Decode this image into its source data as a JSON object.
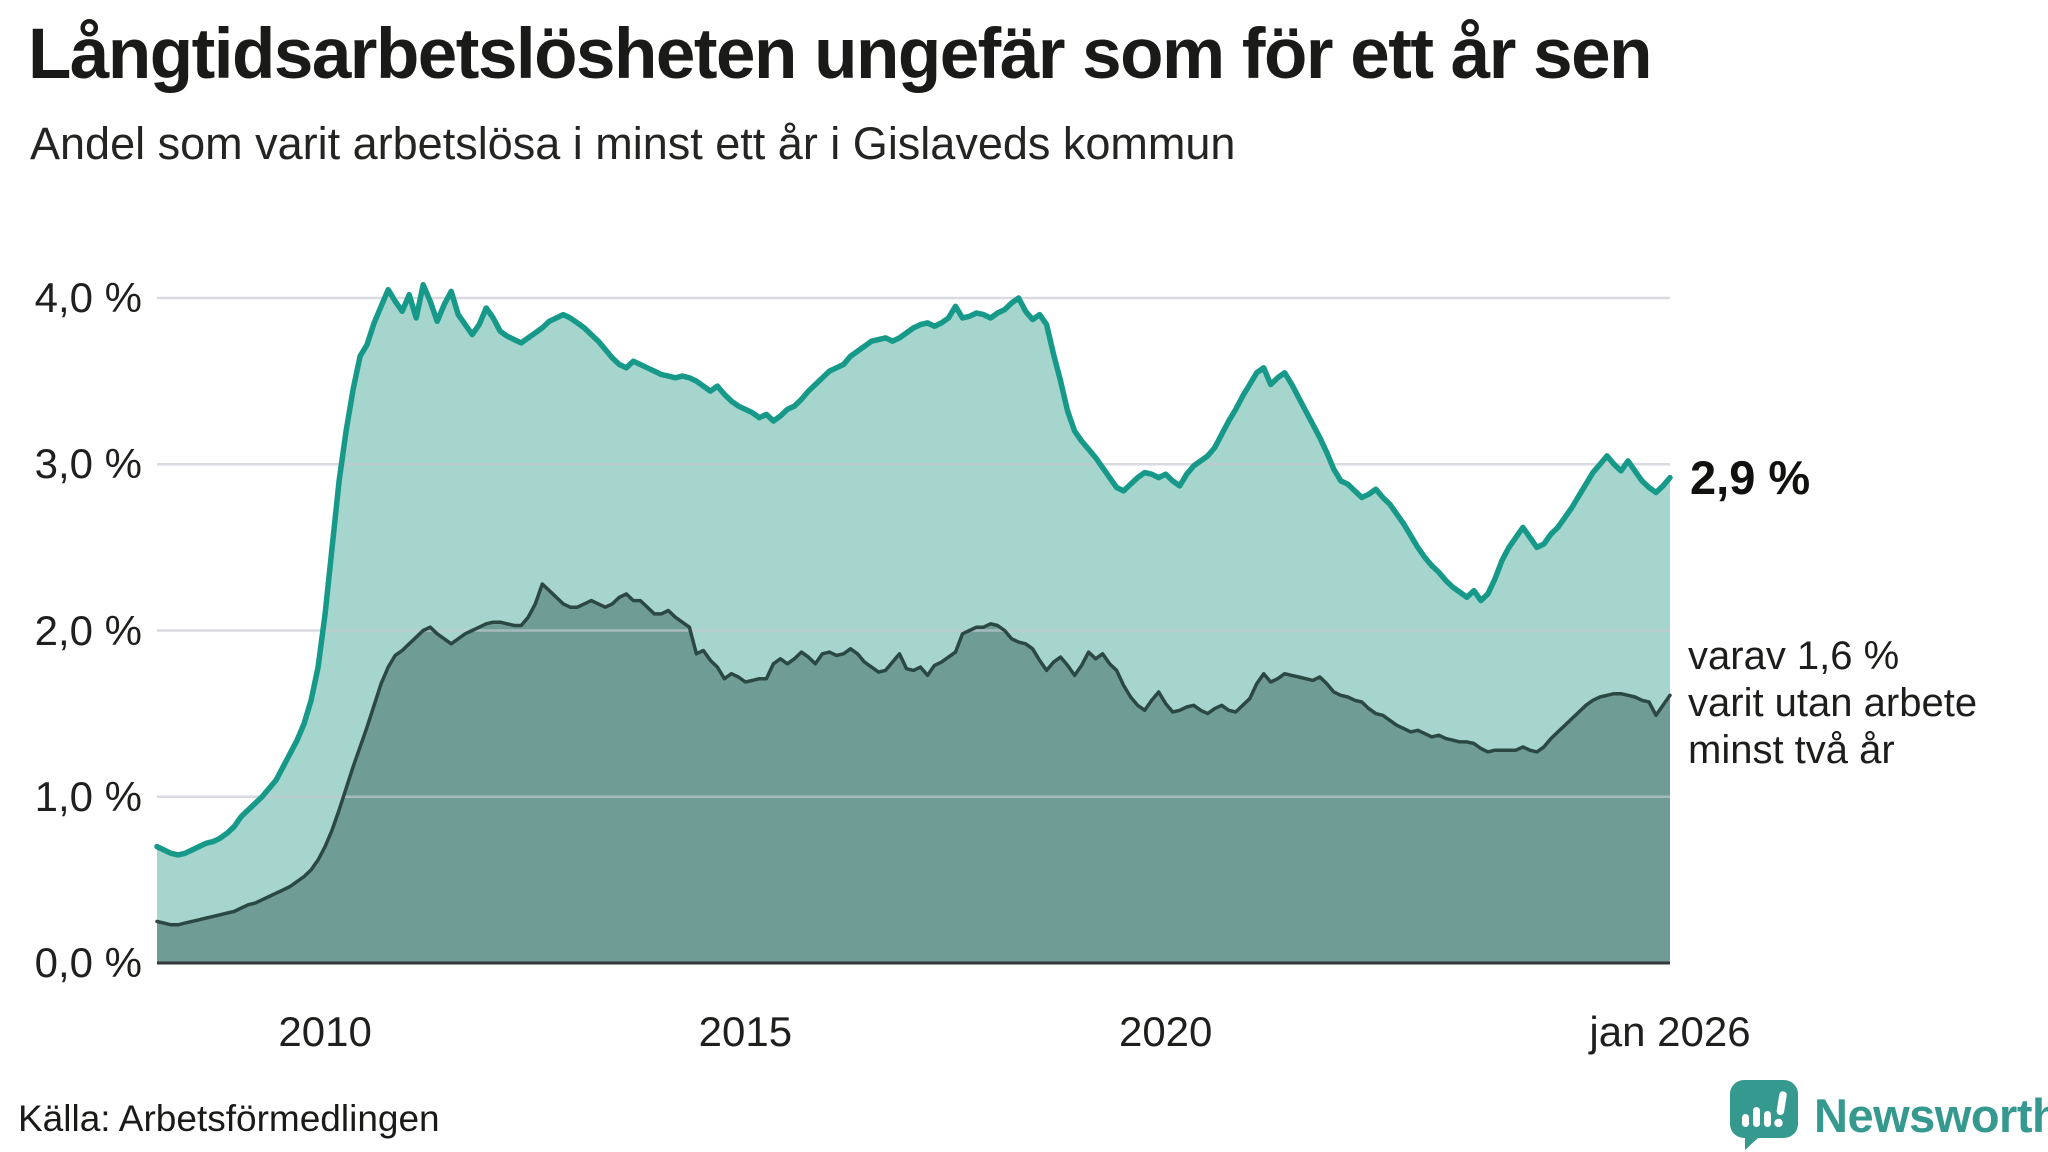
{
  "header": {
    "title": "Långtidsarbetslösheten ungefär som för ett år sen",
    "subtitle": "Andel som varit arbetslösa i minst ett år i Gislaveds kommun"
  },
  "chart_data": {
    "type": "area",
    "title": "Långtidsarbetslösheten ungefär som för ett år sen",
    "subtitle": "Andel som varit arbetslösa i minst ett år i Gislaveds kommun",
    "x_unit": "month",
    "x_start": "2008-01",
    "x_end": "2026-01",
    "grid": "horizontal",
    "legend_position": "right-edge-annotations",
    "ylim": [
      0,
      4.15
    ],
    "y_ticks": [
      {
        "label": "0,0 %",
        "value": 0
      },
      {
        "label": "1,0 %",
        "value": 1
      },
      {
        "label": "2,0 %",
        "value": 2
      },
      {
        "label": "3,0 %",
        "value": 3
      },
      {
        "label": "4,0 %",
        "value": 4
      }
    ],
    "x_ticks": [
      {
        "label": "2010",
        "month_index": 24
      },
      {
        "label": "2015",
        "month_index": 84
      },
      {
        "label": "2020",
        "month_index": 144
      },
      {
        "label": "jan 2026",
        "month_index": 216
      }
    ],
    "end_labels": {
      "primary": "2,9 %",
      "secondary_lines": [
        "varav 1,6 %",
        "varit utan arbete",
        "minst två år"
      ]
    },
    "colors": {
      "line_1yr": "#17998a",
      "fill_1yr": "#a6d5cd",
      "line_2yr": "#2c4843",
      "fill_2yr": "#6f9d96",
      "gridline": "rgba(197,200,207,0.65)",
      "axis": "#32383b"
    },
    "series": [
      {
        "name": "Andel arbetslösa minst ett år",
        "latest_value": 2.9,
        "values": [
          0.7,
          0.68,
          0.66,
          0.65,
          0.66,
          0.68,
          0.7,
          0.72,
          0.73,
          0.75,
          0.78,
          0.82,
          0.88,
          0.92,
          0.96,
          1.0,
          1.05,
          1.1,
          1.18,
          1.26,
          1.34,
          1.44,
          1.58,
          1.78,
          2.1,
          2.5,
          2.9,
          3.2,
          3.45,
          3.65,
          3.72,
          3.85,
          3.95,
          4.05,
          3.98,
          3.92,
          4.02,
          3.88,
          4.08,
          3.98,
          3.86,
          3.96,
          4.04,
          3.9,
          3.84,
          3.78,
          3.84,
          3.94,
          3.88,
          3.8,
          3.77,
          3.75,
          3.73,
          3.76,
          3.79,
          3.82,
          3.86,
          3.88,
          3.9,
          3.88,
          3.85,
          3.82,
          3.78,
          3.74,
          3.69,
          3.64,
          3.6,
          3.58,
          3.62,
          3.6,
          3.58,
          3.56,
          3.54,
          3.53,
          3.52,
          3.53,
          3.52,
          3.5,
          3.47,
          3.44,
          3.47,
          3.42,
          3.38,
          3.35,
          3.33,
          3.31,
          3.28,
          3.3,
          3.26,
          3.29,
          3.33,
          3.35,
          3.39,
          3.44,
          3.48,
          3.52,
          3.56,
          3.58,
          3.6,
          3.65,
          3.68,
          3.71,
          3.74,
          3.75,
          3.76,
          3.74,
          3.76,
          3.79,
          3.82,
          3.84,
          3.85,
          3.83,
          3.85,
          3.88,
          3.95,
          3.88,
          3.89,
          3.91,
          3.9,
          3.88,
          3.91,
          3.93,
          3.97,
          4.0,
          3.92,
          3.87,
          3.9,
          3.84,
          3.66,
          3.5,
          3.32,
          3.2,
          3.14,
          3.09,
          3.04,
          2.98,
          2.92,
          2.86,
          2.84,
          2.88,
          2.92,
          2.95,
          2.94,
          2.92,
          2.94,
          2.9,
          2.87,
          2.94,
          2.99,
          3.02,
          3.05,
          3.1,
          3.18,
          3.26,
          3.33,
          3.41,
          3.48,
          3.55,
          3.58,
          3.48,
          3.52,
          3.55,
          3.48,
          3.4,
          3.32,
          3.24,
          3.16,
          3.07,
          2.97,
          2.9,
          2.88,
          2.84,
          2.8,
          2.82,
          2.85,
          2.8,
          2.76,
          2.7,
          2.64,
          2.57,
          2.5,
          2.44,
          2.39,
          2.35,
          2.3,
          2.26,
          2.23,
          2.2,
          2.24,
          2.18,
          2.22,
          2.31,
          2.42,
          2.5,
          2.56,
          2.62,
          2.56,
          2.5,
          2.52,
          2.58,
          2.62,
          2.68,
          2.74,
          2.81,
          2.88,
          2.95,
          3.0,
          3.05,
          3.0,
          2.96,
          3.02,
          2.96,
          2.9,
          2.86,
          2.83,
          2.87,
          2.92
        ]
      },
      {
        "name": "varav utan arbete minst två år",
        "latest_value": 1.6,
        "values": [
          0.25,
          0.24,
          0.23,
          0.23,
          0.24,
          0.25,
          0.26,
          0.27,
          0.28,
          0.29,
          0.3,
          0.31,
          0.33,
          0.35,
          0.36,
          0.38,
          0.4,
          0.42,
          0.44,
          0.46,
          0.49,
          0.52,
          0.56,
          0.62,
          0.7,
          0.8,
          0.92,
          1.05,
          1.18,
          1.3,
          1.42,
          1.55,
          1.68,
          1.78,
          1.85,
          1.88,
          1.92,
          1.96,
          2.0,
          2.02,
          1.98,
          1.95,
          1.92,
          1.95,
          1.98,
          2.0,
          2.02,
          2.04,
          2.05,
          2.05,
          2.04,
          2.03,
          2.03,
          2.08,
          2.16,
          2.28,
          2.24,
          2.2,
          2.16,
          2.14,
          2.14,
          2.16,
          2.18,
          2.16,
          2.14,
          2.16,
          2.2,
          2.22,
          2.18,
          2.18,
          2.14,
          2.1,
          2.1,
          2.12,
          2.08,
          2.05,
          2.02,
          1.86,
          1.88,
          1.82,
          1.78,
          1.71,
          1.74,
          1.72,
          1.69,
          1.7,
          1.71,
          1.71,
          1.8,
          1.83,
          1.8,
          1.83,
          1.87,
          1.84,
          1.8,
          1.86,
          1.87,
          1.85,
          1.86,
          1.89,
          1.86,
          1.81,
          1.78,
          1.75,
          1.76,
          1.81,
          1.86,
          1.77,
          1.76,
          1.78,
          1.73,
          1.79,
          1.81,
          1.84,
          1.87,
          1.98,
          2.0,
          2.02,
          2.02,
          2.04,
          2.03,
          2.0,
          1.95,
          1.93,
          1.92,
          1.89,
          1.82,
          1.76,
          1.81,
          1.84,
          1.79,
          1.73,
          1.79,
          1.87,
          1.83,
          1.86,
          1.8,
          1.76,
          1.67,
          1.6,
          1.55,
          1.52,
          1.58,
          1.63,
          1.56,
          1.51,
          1.52,
          1.54,
          1.55,
          1.52,
          1.5,
          1.53,
          1.55,
          1.52,
          1.51,
          1.55,
          1.59,
          1.68,
          1.74,
          1.69,
          1.71,
          1.74,
          1.73,
          1.72,
          1.71,
          1.7,
          1.72,
          1.68,
          1.63,
          1.61,
          1.6,
          1.58,
          1.57,
          1.53,
          1.5,
          1.49,
          1.46,
          1.43,
          1.41,
          1.39,
          1.4,
          1.38,
          1.36,
          1.37,
          1.35,
          1.34,
          1.33,
          1.33,
          1.32,
          1.29,
          1.27,
          1.28,
          1.28,
          1.28,
          1.28,
          1.3,
          1.28,
          1.27,
          1.3,
          1.35,
          1.39,
          1.43,
          1.47,
          1.51,
          1.55,
          1.58,
          1.6,
          1.61,
          1.62,
          1.62,
          1.61,
          1.6,
          1.58,
          1.57,
          1.49,
          1.55,
          1.61
        ]
      }
    ]
  },
  "footer": {
    "source": "Källa: Arbetsförmedlingen",
    "brand": "Newsworthy"
  }
}
